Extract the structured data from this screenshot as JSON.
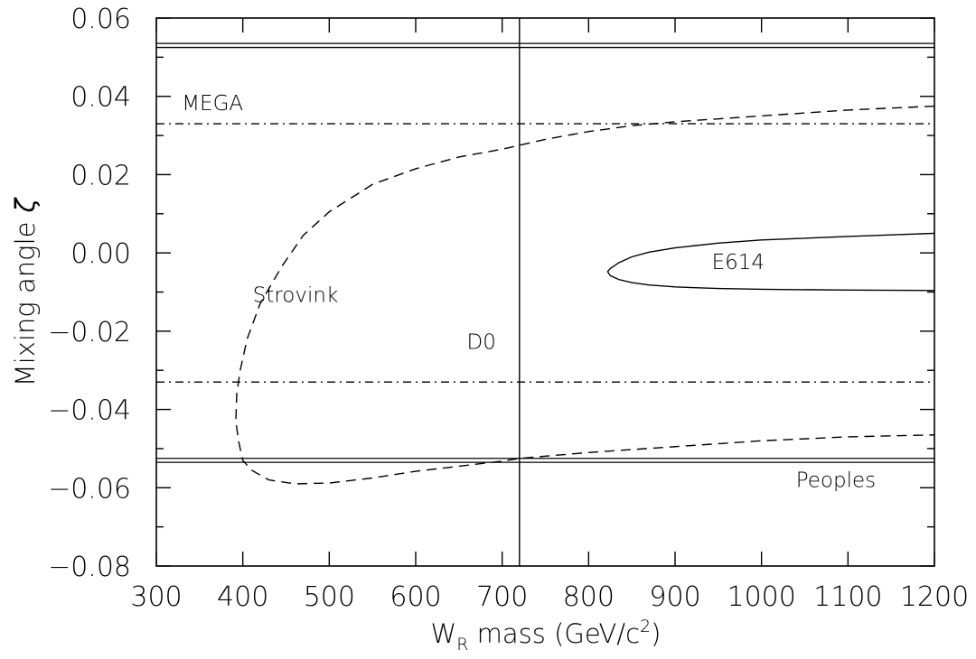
{
  "chart_data": {
    "type": "line",
    "xlabel": {
      "main": "W",
      "sub": "R",
      "rest_before_sup": " mass  (GeV/c",
      "sup": "2",
      "rest_after_sup": ")"
    },
    "ylabel": {
      "text": "Mixing angle",
      "symbol": "ζ"
    },
    "xlim": [
      300,
      1200
    ],
    "ylim": [
      -0.08,
      0.06
    ],
    "xticks": [
      300,
      400,
      500,
      600,
      700,
      800,
      900,
      1000,
      1100,
      1200
    ],
    "xtick_labels": [
      "300",
      "400",
      "500",
      "600",
      "700",
      "800",
      "900",
      "1000",
      "1100",
      "1200"
    ],
    "yticks": [
      0.06,
      0.04,
      0.02,
      0.0,
      -0.02,
      -0.04,
      -0.06,
      -0.08
    ],
    "ytick_labels": [
      "0.06",
      "0.04",
      "0.02",
      "0.00",
      "−0.02",
      "−0.04",
      "−0.06",
      "−0.08"
    ],
    "grid": false,
    "series": [
      {
        "style": "double-solid",
        "color": "#000000",
        "x": [
          300,
          1200
        ],
        "y": [
          0.053,
          0.053
        ]
      },
      {
        "style": "double-solid",
        "color": "#000000",
        "x": [
          300,
          1200
        ],
        "y": [
          -0.053,
          -0.053
        ]
      },
      {
        "style": "dash-dot",
        "color": "#000000",
        "x": [
          300,
          1200
        ],
        "y": [
          0.033,
          0.033
        ]
      },
      {
        "style": "dash-dot",
        "color": "#000000",
        "x": [
          300,
          1200
        ],
        "y": [
          -0.033,
          -0.033
        ]
      },
      {
        "style": "solid",
        "color": "#000000",
        "x": [
          720,
          720
        ],
        "y": [
          -0.08,
          0.06
        ]
      },
      {
        "style": "dashed",
        "color": "#000000",
        "x": [
          1200,
          1100,
          1000,
          900,
          850,
          800,
          750,
          720,
          700,
          650,
          600,
          550,
          500,
          470,
          445,
          420,
          405,
          397,
          393,
          392,
          395,
          400,
          410,
          430,
          460,
          500,
          550,
          600,
          650,
          700,
          720,
          800,
          900,
          1000,
          1100,
          1200
        ],
        "y": [
          0.0375,
          0.0365,
          0.035,
          0.0335,
          0.0325,
          0.031,
          0.029,
          0.0275,
          0.0265,
          0.0245,
          0.0215,
          0.0175,
          0.0105,
          0.0045,
          -0.0035,
          -0.013,
          -0.022,
          -0.03,
          -0.036,
          -0.043,
          -0.048,
          -0.053,
          -0.0555,
          -0.058,
          -0.059,
          -0.0588,
          -0.0575,
          -0.0558,
          -0.0545,
          -0.0532,
          -0.0525,
          -0.051,
          -0.0495,
          -0.048,
          -0.047,
          -0.0465
        ]
      },
      {
        "style": "solid",
        "color": "#000000",
        "x": [
          1200,
          1100,
          1000,
          950,
          900,
          870,
          850,
          835,
          825,
          822,
          825,
          835,
          850,
          870,
          900,
          950,
          1000,
          1100,
          1200
        ],
        "y": [
          0.005,
          0.0042,
          0.0033,
          0.0025,
          0.0013,
          0.0002,
          -0.001,
          -0.0025,
          -0.004,
          -0.0048,
          -0.0058,
          -0.0068,
          -0.0076,
          -0.0082,
          -0.0087,
          -0.0091,
          -0.0093,
          -0.0095,
          -0.0096
        ]
      }
    ],
    "annotations": [
      {
        "text": "MEGA",
        "x": 365,
        "y": 0.0365
      },
      {
        "text": "Strovink",
        "x": 461,
        "y": -0.0125
      },
      {
        "text": "D0",
        "x": 676,
        "y": -0.0245
      },
      {
        "text": "E614",
        "x": 973,
        "y": -0.0041
      },
      {
        "text": "Peoples",
        "x": 1086,
        "y": -0.0598
      }
    ]
  }
}
